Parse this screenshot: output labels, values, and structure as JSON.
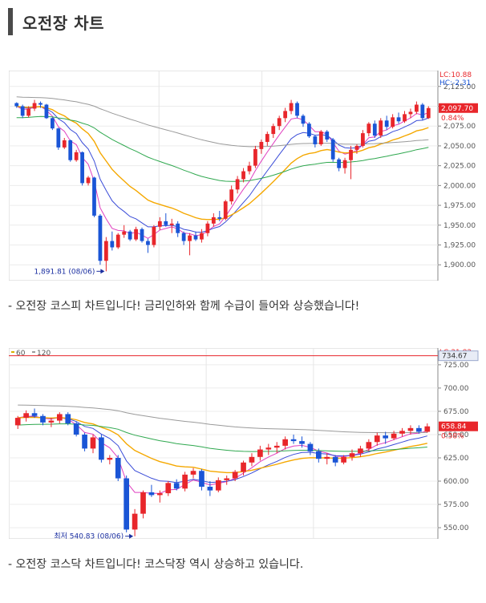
{
  "header": {
    "title": "오전장  차트"
  },
  "captions": [
    "- 오전장 코스피 차트입니다! 금리인하와 함께 수급이 들어와 상승했습니다!",
    "- 오전장 코스닥 차트입니다! 코스닥장 역시 상승하고 있습니다."
  ],
  "chart_data": [
    {
      "type": "candlestick",
      "title": "",
      "ylim": [
        1880,
        2145
      ],
      "yticks": [
        2125,
        2100,
        2075,
        2050,
        2025,
        2000,
        1975,
        1950,
        1925,
        1900
      ],
      "ytick_labels": [
        "2,125.00",
        "2,100.00",
        "2,075.00",
        "2,050.00",
        "2,025.00",
        "2,000.00",
        "1,975.00",
        "1,950.00",
        "1,925.00",
        "1,900.00"
      ],
      "top_labels": [
        "LC:10.88",
        "HC:-2.31"
      ],
      "current_value_label": "2,097.70",
      "current_value": 2097.7,
      "change_label": "0.84%",
      "low_annotation": "1,891.81 (08/06)",
      "low_value": 1891.81,
      "candles": [
        [
          2104,
          2105,
          2098,
          2100
        ],
        [
          2100,
          2102,
          2085,
          2088
        ],
        [
          2088,
          2100,
          2086,
          2097
        ],
        [
          2097,
          2108,
          2094,
          2104
        ],
        [
          2104,
          2106,
          2098,
          2102
        ],
        [
          2102,
          2103,
          2084,
          2085
        ],
        [
          2085,
          2086,
          2070,
          2072
        ],
        [
          2072,
          2073,
          2045,
          2048
        ],
        [
          2048,
          2060,
          2046,
          2057
        ],
        [
          2057,
          2058,
          2030,
          2032
        ],
        [
          2032,
          2045,
          2030,
          2042
        ],
        [
          2042,
          2043,
          2000,
          2003
        ],
        [
          2003,
          2012,
          2000,
          2010
        ],
        [
          2010,
          2011,
          1960,
          1962
        ],
        [
          1962,
          1964,
          1900,
          1905
        ],
        [
          1905,
          1935,
          1891.81,
          1930
        ],
        [
          1930,
          1942,
          1918,
          1922
        ],
        [
          1922,
          1940,
          1920,
          1938
        ],
        [
          1938,
          1950,
          1934,
          1942
        ],
        [
          1942,
          1944,
          1930,
          1932
        ],
        [
          1932,
          1948,
          1930,
          1945
        ],
        [
          1945,
          1947,
          1928,
          1930
        ],
        [
          1930,
          1933,
          1915,
          1925
        ],
        [
          1925,
          1950,
          1922,
          1948
        ],
        [
          1948,
          1960,
          1944,
          1955
        ],
        [
          1955,
          1965,
          1948,
          1950
        ],
        [
          1950,
          1958,
          1940,
          1952
        ],
        [
          1952,
          1955,
          1935,
          1940
        ],
        [
          1940,
          1942,
          1925,
          1930
        ],
        [
          1930,
          1940,
          1912,
          1937
        ],
        [
          1937,
          1942,
          1930,
          1932
        ],
        [
          1932,
          1945,
          1928,
          1940
        ],
        [
          1940,
          1955,
          1936,
          1952
        ],
        [
          1952,
          1965,
          1948,
          1960
        ],
        [
          1960,
          1968,
          1955,
          1958
        ],
        [
          1958,
          1982,
          1956,
          1980
        ],
        [
          1980,
          2000,
          1976,
          1995
        ],
        [
          1995,
          2012,
          1990,
          2008
        ],
        [
          2008,
          2022,
          2004,
          2018
        ],
        [
          2018,
          2030,
          2014,
          2025
        ],
        [
          2025,
          2050,
          2022,
          2046
        ],
        [
          2046,
          2058,
          2040,
          2055
        ],
        [
          2055,
          2068,
          2050,
          2065
        ],
        [
          2065,
          2078,
          2060,
          2075
        ],
        [
          2075,
          2088,
          2070,
          2085
        ],
        [
          2085,
          2098,
          2080,
          2094
        ],
        [
          2094,
          2108,
          2090,
          2104
        ],
        [
          2104,
          2106,
          2085,
          2088
        ],
        [
          2088,
          2090,
          2074,
          2078
        ],
        [
          2078,
          2080,
          2060,
          2062
        ],
        [
          2062,
          2064,
          2048,
          2052
        ],
        [
          2052,
          2070,
          2050,
          2068
        ],
        [
          2068,
          2070,
          2055,
          2058
        ],
        [
          2058,
          2060,
          2030,
          2033
        ],
        [
          2033,
          2035,
          2018,
          2022
        ],
        [
          2022,
          2035,
          2015,
          2032
        ],
        [
          2032,
          2050,
          2008,
          2045
        ],
        [
          2045,
          2052,
          2040,
          2050
        ],
        [
          2050,
          2070,
          2048,
          2066
        ],
        [
          2066,
          2080,
          2062,
          2078
        ],
        [
          2078,
          2082,
          2060,
          2063
        ],
        [
          2063,
          2085,
          2060,
          2082
        ],
        [
          2082,
          2088,
          2070,
          2074
        ],
        [
          2074,
          2090,
          2072,
          2086
        ],
        [
          2086,
          2092,
          2078,
          2081
        ],
        [
          2081,
          2094,
          2079,
          2090
        ],
        [
          2090,
          2097,
          2085,
          2093
        ],
        [
          2093,
          2106,
          2090,
          2102
        ],
        [
          2102,
          2104,
          2082,
          2085
        ],
        [
          2085,
          2100,
          2084,
          2097.7
        ]
      ],
      "x_markers": [
        0.35,
        0.59
      ]
    },
    {
      "type": "candlestick",
      "title": "",
      "ylim": [
        538,
        743
      ],
      "yticks": [
        725,
        700,
        675,
        650,
        625,
        600,
        575,
        550
      ],
      "ytick_labels": [
        "725.00",
        "700.00",
        "675.00",
        "650.00",
        "625.00",
        "600.00",
        "575.00",
        "550.00"
      ],
      "top_labels": [
        "LC:21.82"
      ],
      "legend": [
        "60",
        "120"
      ],
      "reference_line_label": "734.67",
      "reference_line": 734.67,
      "current_value_label": "658.84",
      "current_value": 658.84,
      "change_label": "0.58%",
      "low_annotation": "최저 540.83 (08/06)",
      "low_value": 540.83,
      "candles": [
        [
          660,
          670,
          656,
          668
        ],
        [
          668,
          676,
          664,
          673
        ],
        [
          673,
          678,
          668,
          670
        ],
        [
          670,
          672,
          660,
          663
        ],
        [
          663,
          668,
          658,
          665
        ],
        [
          665,
          674,
          662,
          672
        ],
        [
          672,
          674,
          660,
          662
        ],
        [
          662,
          664,
          648,
          650
        ],
        [
          650,
          652,
          632,
          635
        ],
        [
          635,
          650,
          630,
          647
        ],
        [
          647,
          650,
          620,
          623
        ],
        [
          623,
          628,
          618,
          625
        ],
        [
          625,
          628,
          600,
          603
        ],
        [
          603,
          606,
          545,
          548
        ],
        [
          548,
          570,
          540.83,
          565
        ],
        [
          565,
          590,
          560,
          588
        ],
        [
          588,
          596,
          583,
          585
        ],
        [
          585,
          590,
          577,
          587
        ],
        [
          587,
          600,
          584,
          598
        ],
        [
          598,
          602,
          590,
          592
        ],
        [
          592,
          610,
          589,
          607
        ],
        [
          607,
          614,
          603,
          611
        ],
        [
          611,
          613,
          590,
          594
        ],
        [
          594,
          600,
          584,
          590
        ],
        [
          590,
          604,
          588,
          601
        ],
        [
          601,
          606,
          596,
          603
        ],
        [
          603,
          612,
          600,
          610
        ],
        [
          610,
          622,
          606,
          620
        ],
        [
          620,
          630,
          616,
          626
        ],
        [
          626,
          638,
          622,
          634
        ],
        [
          634,
          640,
          628,
          636
        ],
        [
          636,
          642,
          630,
          638
        ],
        [
          638,
          648,
          634,
          645
        ],
        [
          645,
          650,
          640,
          643
        ],
        [
          643,
          648,
          636,
          640
        ],
        [
          640,
          642,
          628,
          632
        ],
        [
          632,
          635,
          620,
          624
        ],
        [
          624,
          630,
          618,
          626
        ],
        [
          626,
          628,
          616,
          620
        ],
        [
          620,
          628,
          618,
          626
        ],
        [
          626,
          634,
          622,
          630
        ],
        [
          630,
          638,
          626,
          635
        ],
        [
          635,
          645,
          632,
          642
        ],
        [
          642,
          652,
          638,
          649
        ],
        [
          649,
          653,
          640,
          646
        ],
        [
          646,
          654,
          644,
          651
        ],
        [
          651,
          657,
          648,
          654
        ],
        [
          654,
          660,
          650,
          657
        ],
        [
          657,
          660,
          651,
          653
        ],
        [
          653,
          662,
          652,
          658.84
        ]
      ],
      "x_markers": [
        0.46,
        0.71
      ]
    }
  ]
}
